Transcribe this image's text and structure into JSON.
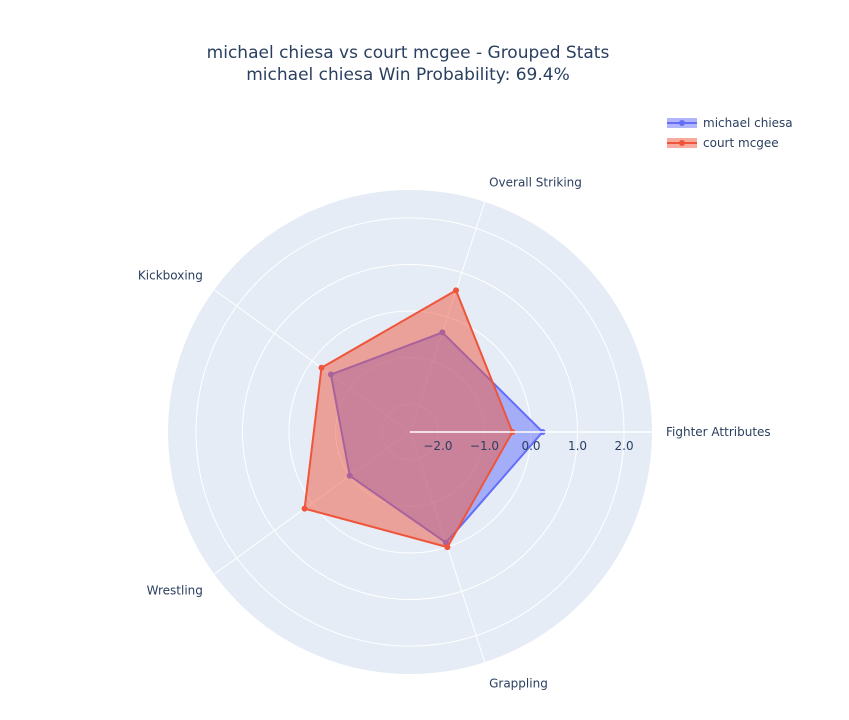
{
  "title_line1": "michael chiesa vs court mcgee - Grouped Stats",
  "title_line2": "michael chiesa Win Probability: 69.4%",
  "chart_data": {
    "type": "radar",
    "categories": [
      "Fighter Attributes",
      "Overall Striking",
      "Kickboxing",
      "Wrestling",
      "Grappling"
    ],
    "radial_range": [
      -2.6,
      2.6
    ],
    "radial_ticks": [
      "−2.0",
      "−1.0",
      "0.0",
      "1.0",
      "2.0"
    ],
    "radial_tick_values": [
      -2.0,
      -1.0,
      0.0,
      1.0,
      2.0
    ],
    "grid": true,
    "legend_position": "top-right",
    "series": [
      {
        "name": "michael chiesa",
        "values": [
          0.25,
          -0.35,
          -0.5,
          -1.0,
          -0.1
        ],
        "color": "#636efa"
      },
      {
        "name": "court mcgee",
        "values": [
          -0.4,
          0.6,
          -0.25,
          0.2,
          0.0
        ],
        "color": "#ef553b"
      }
    ]
  },
  "colors": {
    "polar_bg": "#e5ecf6",
    "grid": "#ffffff",
    "text": "#2a3f5f"
  }
}
